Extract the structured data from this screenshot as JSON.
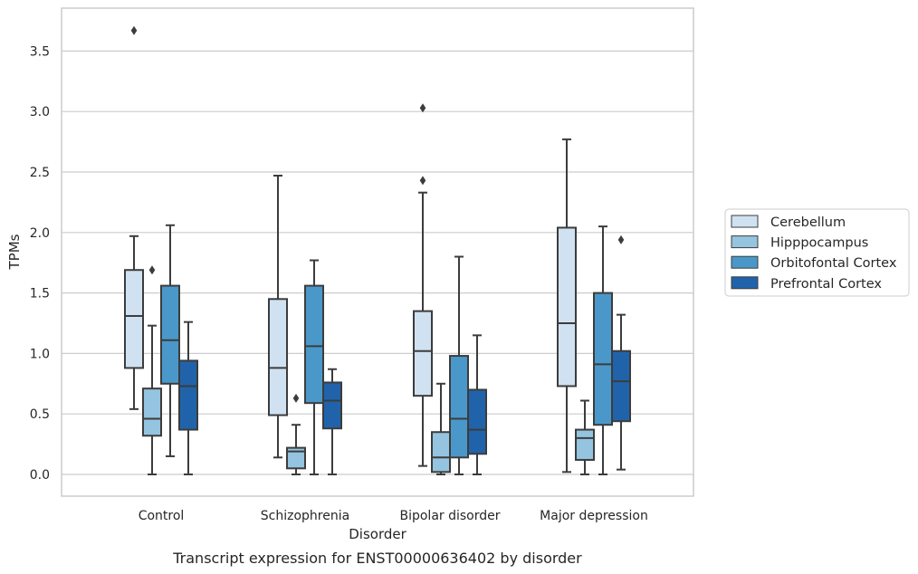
{
  "caption": "Transcript expression for ENST00000636402 by disorder",
  "chart_data": {
    "type": "box",
    "xlabel": "Disorder",
    "ylabel": "TPMs",
    "ylim": [
      -0.18,
      3.85
    ],
    "yticks": [
      "0.0",
      "0.5",
      "1.0",
      "1.5",
      "2.0",
      "2.5",
      "3.0",
      "3.5"
    ],
    "ytick_values": [
      0.0,
      0.5,
      1.0,
      1.5,
      2.0,
      2.5,
      3.0,
      3.5
    ],
    "categories": [
      "Control",
      "Schizophrenia",
      "Bipolar disorder",
      "Major depression"
    ],
    "grid": "horizontal",
    "legend_placement": "outside-right",
    "series": [
      {
        "name": "Cerebellum",
        "color": "#d0e1f2",
        "boxes": [
          {
            "whislo": 0.54,
            "q1": 0.88,
            "med": 1.31,
            "q3": 1.69,
            "whishi": 1.97,
            "fliers": [
              3.67
            ]
          },
          {
            "whislo": 0.14,
            "q1": 0.49,
            "med": 0.88,
            "q3": 1.45,
            "whishi": 2.47,
            "fliers": []
          },
          {
            "whislo": 0.07,
            "q1": 0.65,
            "med": 1.02,
            "q3": 1.35,
            "whishi": 2.33,
            "fliers": [
              2.43,
              3.03
            ]
          },
          {
            "whislo": 0.02,
            "q1": 0.73,
            "med": 1.25,
            "q3": 2.04,
            "whishi": 2.77,
            "fliers": []
          }
        ]
      },
      {
        "name": "Hipppocampus",
        "color": "#94c4df",
        "boxes": [
          {
            "whislo": 0.0,
            "q1": 0.32,
            "med": 0.46,
            "q3": 0.71,
            "whishi": 1.23,
            "fliers": [
              1.69
            ]
          },
          {
            "whislo": 0.0,
            "q1": 0.05,
            "med": 0.19,
            "q3": 0.22,
            "whishi": 0.41,
            "fliers": [
              0.63
            ]
          },
          {
            "whislo": 0.0,
            "q1": 0.02,
            "med": 0.14,
            "q3": 0.35,
            "whishi": 0.75,
            "fliers": []
          },
          {
            "whislo": 0.0,
            "q1": 0.12,
            "med": 0.3,
            "q3": 0.37,
            "whishi": 0.61,
            "fliers": []
          }
        ]
      },
      {
        "name": "Orbitofontal Cortex",
        "color": "#4a98c9",
        "boxes": [
          {
            "whislo": 0.15,
            "q1": 0.75,
            "med": 1.11,
            "q3": 1.56,
            "whishi": 2.06,
            "fliers": []
          },
          {
            "whislo": 0.0,
            "q1": 0.59,
            "med": 1.06,
            "q3": 1.56,
            "whishi": 1.77,
            "fliers": []
          },
          {
            "whislo": 0.0,
            "q1": 0.14,
            "med": 0.46,
            "q3": 0.98,
            "whishi": 1.8,
            "fliers": []
          },
          {
            "whislo": 0.0,
            "q1": 0.41,
            "med": 0.91,
            "q3": 1.5,
            "whishi": 2.05,
            "fliers": []
          }
        ]
      },
      {
        "name": "Prefrontal Cortex",
        "color": "#2163aa",
        "boxes": [
          {
            "whislo": 0.0,
            "q1": 0.37,
            "med": 0.73,
            "q3": 0.94,
            "whishi": 1.26,
            "fliers": []
          },
          {
            "whislo": 0.0,
            "q1": 0.38,
            "med": 0.61,
            "q3": 0.76,
            "whishi": 0.87,
            "fliers": []
          },
          {
            "whislo": 0.0,
            "q1": 0.17,
            "med": 0.37,
            "q3": 0.7,
            "whishi": 1.15,
            "fliers": []
          },
          {
            "whislo": 0.04,
            "q1": 0.44,
            "med": 0.77,
            "q3": 1.02,
            "whishi": 1.32,
            "fliers": [
              1.94
            ]
          }
        ]
      }
    ]
  }
}
